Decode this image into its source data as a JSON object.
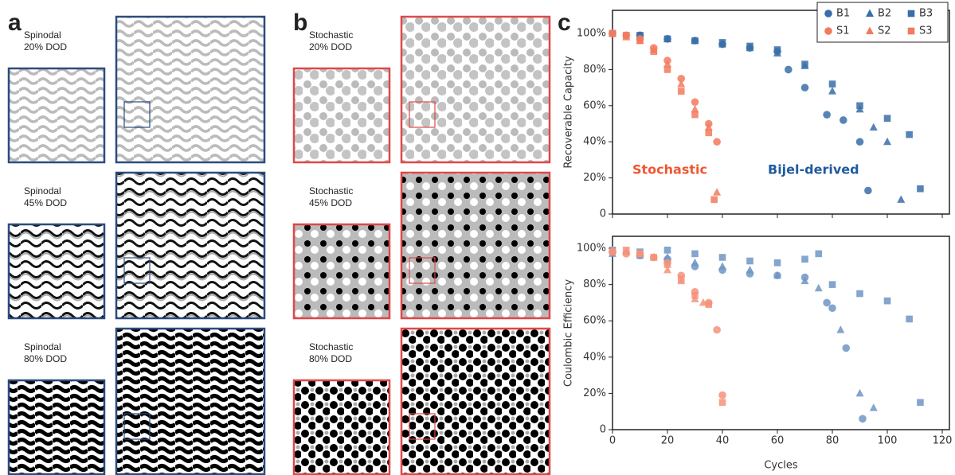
{
  "panels": [
    {
      "label": "a",
      "rows": [
        [
          "Spinodal",
          "20% DOD"
        ],
        [
          "Spinodal",
          "45% DOD"
        ],
        [
          "Spinodal",
          "80% DOD"
        ]
      ]
    },
    {
      "label": "b",
      "rows": [
        [
          "Stochastic",
          "20% DOD"
        ],
        [
          "Stochastic",
          "45% DOD"
        ],
        [
          "Stochastic",
          "80% DOD"
        ]
      ]
    }
  ],
  "chart_label": "c",
  "chart_data": [
    {
      "type": "scatter",
      "ylabel": "Recoverable Capacity",
      "xlim": [
        0,
        122.6
      ],
      "xticks": [
        0,
        20,
        40,
        60,
        80,
        100,
        120
      ],
      "show_xtick_labels": false,
      "ylim": [
        0,
        112.8
      ],
      "yticks": [
        0,
        {
          "value": 20,
          "label": "20%"
        },
        {
          "value": 40,
          "label": "40%"
        },
        {
          "value": 60,
          "label": "60%"
        },
        {
          "value": 80,
          "label": "80%"
        },
        {
          "value": 100,
          "label": "100%"
        }
      ],
      "legend": "upper right",
      "annotations": [
        {
          "text": "Stochastic",
          "color": "#f0552f"
        },
        {
          "text": "Bijel-derived",
          "color": "#1f5aa0"
        }
      ],
      "series": [
        {
          "name": "B1",
          "marker": "circle",
          "color": "#3a6ea8",
          "x": [
            0,
            10,
            20,
            30,
            40,
            50,
            60,
            64,
            70,
            78,
            84,
            90,
            93
          ],
          "values": [
            100,
            99,
            97,
            96,
            94,
            92,
            90,
            80,
            70,
            55,
            52,
            40,
            13
          ]
        },
        {
          "name": "B2",
          "marker": "triangle",
          "color": "#3a6ea8",
          "x": [
            0,
            10,
            20,
            30,
            40,
            50,
            60,
            70,
            80,
            90,
            95,
            100,
            105
          ],
          "values": [
            100,
            98,
            97,
            96,
            94,
            92,
            89,
            82,
            68,
            58,
            48,
            40,
            8
          ]
        },
        {
          "name": "B3",
          "marker": "square",
          "color": "#3a6ea8",
          "x": [
            0,
            10,
            20,
            30,
            40,
            50,
            60,
            70,
            80,
            90,
            100,
            108,
            112
          ],
          "values": [
            100,
            99,
            97,
            96,
            95,
            93,
            91,
            83,
            72,
            60,
            53,
            44,
            14
          ]
        },
        {
          "name": "S1",
          "marker": "circle",
          "color": "#f27a5e",
          "x": [
            0,
            5,
            10,
            15,
            20,
            25,
            30,
            35,
            38
          ],
          "values": [
            100,
            99,
            97,
            92,
            85,
            75,
            62,
            50,
            40
          ]
        },
        {
          "name": "S2",
          "marker": "triangle",
          "color": "#f27a5e",
          "x": [
            0,
            5,
            10,
            15,
            20,
            25,
            30,
            35,
            38
          ],
          "values": [
            100,
            98,
            96,
            91,
            83,
            72,
            58,
            48,
            12
          ]
        },
        {
          "name": "S3",
          "marker": "square",
          "color": "#f27a5e",
          "x": [
            0,
            5,
            10,
            15,
            20,
            25,
            30,
            35,
            37
          ],
          "values": [
            100,
            99,
            96,
            90,
            80,
            68,
            55,
            45,
            8
          ]
        }
      ]
    },
    {
      "type": "scatter",
      "ylabel": "Coulombic  Efficiency",
      "xlabel": "Cycles",
      "xlim": [
        0,
        122.6
      ],
      "xticks": [
        0,
        20,
        40,
        60,
        80,
        100,
        120
      ],
      "show_xtick_labels": true,
      "ylim": [
        0,
        106.6
      ],
      "yticks": [
        0,
        {
          "value": 20,
          "label": "20%"
        },
        {
          "value": 40,
          "label": "40%"
        },
        {
          "value": 60,
          "label": "60%"
        },
        {
          "value": 80,
          "label": "80%"
        },
        {
          "value": 100,
          "label": "100%"
        }
      ],
      "series": [
        {
          "name": "B1",
          "marker": "circle",
          "color": "#6f95c4",
          "x": [
            0,
            10,
            20,
            30,
            40,
            50,
            60,
            70,
            78,
            80,
            85,
            91
          ],
          "values": [
            98,
            96,
            94,
            90,
            88,
            86,
            85,
            84,
            70,
            67,
            45,
            6
          ]
        },
        {
          "name": "B2",
          "marker": "triangle",
          "color": "#6f95c4",
          "x": [
            0,
            10,
            20,
            30,
            40,
            50,
            60,
            70,
            75,
            83,
            90,
            95
          ],
          "values": [
            97,
            96,
            95,
            92,
            90,
            88,
            85,
            82,
            78,
            55,
            20,
            12
          ]
        },
        {
          "name": "B3",
          "marker": "square",
          "color": "#6f95c4",
          "x": [
            0,
            10,
            20,
            30,
            40,
            50,
            60,
            70,
            75,
            80,
            90,
            100,
            108,
            112
          ],
          "values": [
            99,
            98,
            99,
            97,
            95,
            93,
            92,
            94,
            97,
            80,
            75,
            71,
            61,
            15
          ]
        },
        {
          "name": "S1",
          "marker": "circle",
          "color": "#f4927a",
          "x": [
            0,
            5,
            10,
            15,
            20,
            25,
            30,
            35,
            38,
            40
          ],
          "values": [
            98,
            97,
            97,
            95,
            92,
            85,
            76,
            70,
            55,
            19
          ]
        },
        {
          "name": "S2",
          "marker": "triangle",
          "color": "#f4927a",
          "x": [
            0,
            5,
            10,
            15,
            20,
            25,
            30,
            33
          ],
          "values": [
            99,
            98,
            97,
            95,
            88,
            82,
            72,
            70
          ]
        },
        {
          "name": "S3",
          "marker": "square",
          "color": "#f4927a",
          "x": [
            0,
            5,
            10,
            15,
            20,
            25,
            30,
            35,
            40
          ],
          "values": [
            98,
            99,
            97,
            95,
            91,
            83,
            74,
            69,
            15
          ]
        }
      ]
    }
  ]
}
